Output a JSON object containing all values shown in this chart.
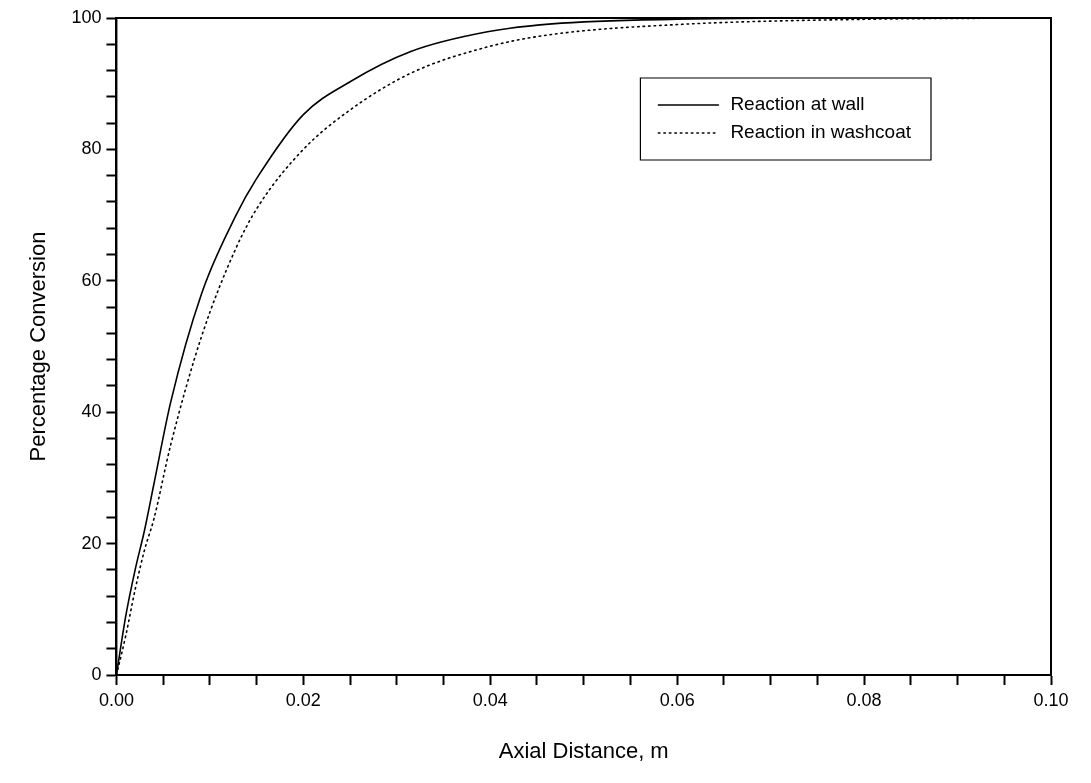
{
  "chart_data": {
    "type": "line",
    "xlabel": "Axial Distance, m",
    "ylabel": "Percentage Conversion",
    "xlim": [
      0,
      0.1
    ],
    "ylim": [
      0,
      100
    ],
    "xticks": [
      {
        "value": 0,
        "label": "0.00"
      },
      {
        "value": 0.005,
        "label": null
      },
      {
        "value": 0.01,
        "label": null
      },
      {
        "value": 0.015,
        "label": null
      },
      {
        "value": 0.02,
        "label": "0.02"
      },
      {
        "value": 0.025,
        "label": null
      },
      {
        "value": 0.03,
        "label": null
      },
      {
        "value": 0.035,
        "label": null
      },
      {
        "value": 0.04,
        "label": "0.04"
      },
      {
        "value": 0.045,
        "label": null
      },
      {
        "value": 0.05,
        "label": null
      },
      {
        "value": 0.055,
        "label": null
      },
      {
        "value": 0.06,
        "label": "0.06"
      },
      {
        "value": 0.065,
        "label": null
      },
      {
        "value": 0.07,
        "label": null
      },
      {
        "value": 0.075,
        "label": null
      },
      {
        "value": 0.08,
        "label": "0.08"
      },
      {
        "value": 0.085,
        "label": null
      },
      {
        "value": 0.09,
        "label": null
      },
      {
        "value": 0.095,
        "label": null
      },
      {
        "value": 0.1,
        "label": "0.10"
      }
    ],
    "yticks": [
      0,
      {
        "value": 4,
        "label": null
      },
      {
        "value": 8,
        "label": null
      },
      {
        "value": 12,
        "label": null
      },
      {
        "value": 16,
        "label": null
      },
      20,
      {
        "value": 24,
        "label": null
      },
      {
        "value": 28,
        "label": null
      },
      {
        "value": 32,
        "label": null
      },
      {
        "value": 36,
        "label": null
      },
      40,
      {
        "value": 44,
        "label": null
      },
      {
        "value": 48,
        "label": null
      },
      {
        "value": 52,
        "label": null
      },
      {
        "value": 56,
        "label": null
      },
      60,
      {
        "value": 64,
        "label": null
      },
      {
        "value": 68,
        "label": null
      },
      {
        "value": 72,
        "label": null
      },
      {
        "value": 76,
        "label": null
      },
      80,
      {
        "value": 84,
        "label": null
      },
      {
        "value": 88,
        "label": null
      },
      {
        "value": 92,
        "label": null
      },
      {
        "value": 96,
        "label": null
      },
      100
    ],
    "grid": false,
    "legend": "top right",
    "marker": "none",
    "series": [
      {
        "name": "Reaction at wall",
        "color": "#000000",
        "line_style": "solid",
        "x": [
          0,
          0.001,
          0.002,
          0.003,
          0.004,
          0.0058,
          0.0091,
          0.0128,
          0.0152,
          0.02,
          0.025,
          0.0315,
          0.0397,
          0.0466,
          0.06,
          0.08,
          0.1
        ],
        "values": [
          0,
          9,
          16,
          22,
          29,
          41.5,
          58,
          70,
          76,
          85.3,
          90.3,
          94.9,
          97.9,
          99.1,
          99.8,
          100,
          100
        ]
      },
      {
        "name": "Reaction in washcoat",
        "color": "#000000",
        "line_style": "dotted",
        "x": [
          0,
          0.001,
          0.002,
          0.003,
          0.004,
          0.0058,
          0.0091,
          0.0128,
          0.0152,
          0.02,
          0.025,
          0.0315,
          0.0397,
          0.0466,
          0.06,
          0.08,
          0.1
        ],
        "values": [
          0,
          6,
          13,
          19,
          23.7,
          35,
          51.5,
          65,
          71.4,
          80,
          86,
          91.6,
          95.6,
          97.5,
          99,
          99.8,
          100
        ]
      }
    ]
  }
}
